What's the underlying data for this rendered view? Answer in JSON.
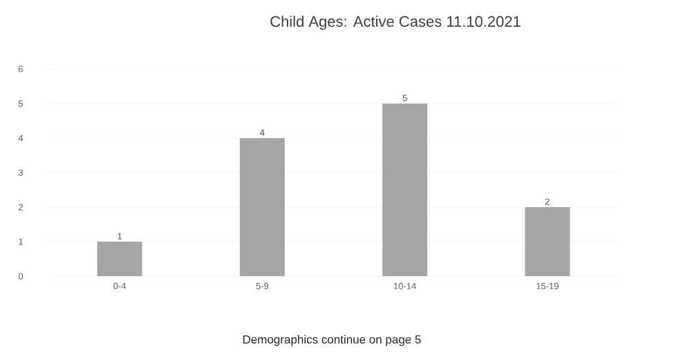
{
  "chart_data": {
    "type": "bar",
    "title": "Child Ages: Active Cases 11.10.2021",
    "categories": [
      "0-4",
      "5-9",
      "10-14",
      "15-19"
    ],
    "values": [
      1,
      4,
      5,
      2
    ],
    "color": "#a5a5a5",
    "ylim": [
      0,
      6
    ],
    "yticks": [
      0,
      1,
      2,
      3,
      4,
      5,
      6
    ],
    "grid": "y",
    "data_labels": true,
    "annotations": [
      "Demographics continue on page 5"
    ]
  }
}
